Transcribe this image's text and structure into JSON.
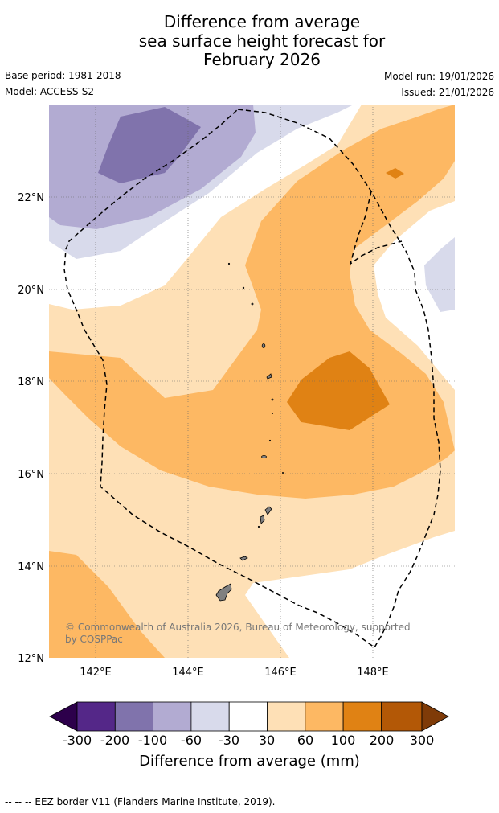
{
  "title": {
    "line1": "Difference from average",
    "line2": "sea surface height forecast for",
    "line3": "February 2026"
  },
  "meta": {
    "base_period": "Base period: 1981-2018",
    "model": "Model: ACCESS-S2",
    "model_run": "Model run: 19/01/2026",
    "issued": "Issued: 21/01/2026"
  },
  "map": {
    "lat_labels": [
      "22°N",
      "20°N",
      "18°N",
      "16°N",
      "14°N",
      "12°N"
    ],
    "lon_labels": [
      "142°E",
      "144°E",
      "146°E",
      "148°E"
    ],
    "copyright_line1": "© Commonwealth of Australia 2026, Bureau of Meteorology, supported",
    "copyright_line2": "by COSPPac",
    "colors": {
      "c_neg300": "#2d004b",
      "c_neg200": "#542788",
      "c_neg100": "#8073ac",
      "c_neg60": "#b2abd2",
      "c_neg30": "#d8daeb",
      "c_zero": "#ffffff",
      "c_pos30": "#fee0b6",
      "c_pos60": "#fdb863",
      "c_pos100": "#e08214",
      "c_pos200": "#b35806",
      "c_pos300": "#7f3b08"
    }
  },
  "colorbar": {
    "ticks": [
      "-300",
      "-200",
      "-100",
      "-60",
      "-30",
      "30",
      "60",
      "100",
      "200",
      "300"
    ],
    "title": "Difference from average (mm)"
  },
  "footer": {
    "legend": "--  --  -- EEZ border V11 (Flanders Marine Institute, 2019)."
  }
}
